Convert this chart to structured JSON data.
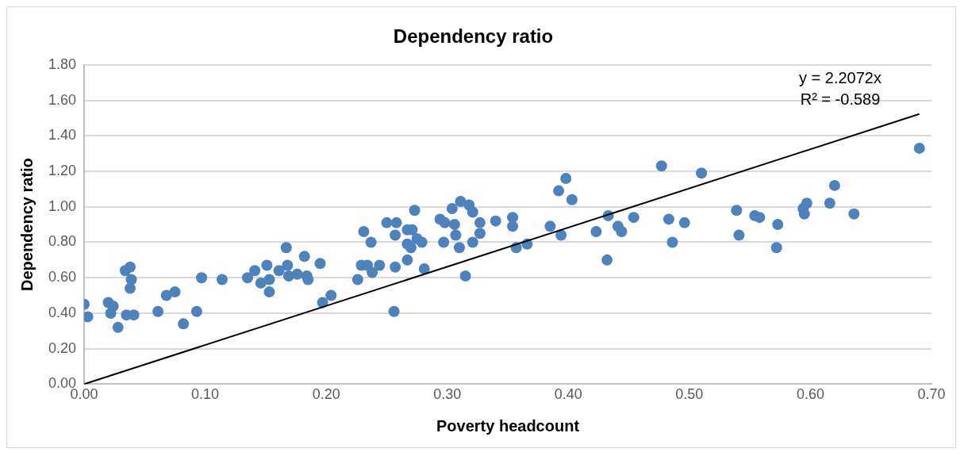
{
  "chart_data": {
    "type": "scatter",
    "title": "Dependency ratio",
    "xlabel": "Poverty headcount",
    "ylabel": "Dependency ratio",
    "x": [
      0.0,
      0.003,
      0.02,
      0.024,
      0.022,
      0.028,
      0.034,
      0.038,
      0.039,
      0.038,
      0.035,
      0.041,
      0.061,
      0.068,
      0.075,
      0.082,
      0.093,
      0.097,
      0.114,
      0.135,
      0.141,
      0.146,
      0.151,
      0.153,
      0.153,
      0.161,
      0.167,
      0.168,
      0.169,
      0.176,
      0.182,
      0.184,
      0.185,
      0.195,
      0.197,
      0.204,
      0.226,
      0.231,
      0.229,
      0.234,
      0.237,
      0.238,
      0.244,
      0.25,
      0.258,
      0.257,
      0.256,
      0.257,
      0.267,
      0.271,
      0.267,
      0.267,
      0.27,
      0.273,
      0.275,
      0.279,
      0.281,
      0.294,
      0.297,
      0.298,
      0.304,
      0.306,
      0.307,
      0.31,
      0.311,
      0.315,
      0.318,
      0.321,
      0.321,
      0.327,
      0.327,
      0.34,
      0.354,
      0.354,
      0.357,
      0.366,
      0.385,
      0.392,
      0.398,
      0.394,
      0.403,
      0.423,
      0.432,
      0.433,
      0.441,
      0.444,
      0.454,
      0.477,
      0.483,
      0.486,
      0.496,
      0.51,
      0.539,
      0.541,
      0.554,
      0.558,
      0.573,
      0.572,
      0.594,
      0.597,
      0.595,
      0.616,
      0.62,
      0.636,
      0.69
    ],
    "series": [
      {
        "marker": "circle",
        "color": "#4f81bd",
        "values": [
          0.45,
          0.38,
          0.46,
          0.44,
          0.4,
          0.32,
          0.64,
          0.66,
          0.59,
          0.54,
          0.39,
          0.39,
          0.41,
          0.5,
          0.52,
          0.34,
          0.41,
          0.6,
          0.59,
          0.6,
          0.64,
          0.57,
          0.67,
          0.59,
          0.52,
          0.64,
          0.77,
          0.67,
          0.61,
          0.62,
          0.72,
          0.61,
          0.59,
          0.68,
          0.46,
          0.5,
          0.59,
          0.86,
          0.67,
          0.67,
          0.8,
          0.63,
          0.67,
          0.91,
          0.91,
          0.66,
          0.41,
          0.84,
          0.87,
          0.87,
          0.7,
          0.79,
          0.77,
          0.98,
          0.82,
          0.8,
          0.65,
          0.93,
          0.8,
          0.91,
          0.99,
          0.9,
          0.84,
          0.77,
          1.03,
          0.61,
          1.01,
          0.97,
          0.8,
          0.91,
          0.85,
          0.92,
          0.94,
          0.89,
          0.77,
          0.79,
          0.89,
          1.09,
          1.16,
          0.84,
          1.04,
          0.86,
          0.7,
          0.95,
          0.89,
          0.86,
          0.94,
          1.23,
          0.93,
          0.8,
          0.91,
          1.19,
          0.98,
          0.84,
          0.95,
          0.94,
          0.9,
          0.77,
          0.99,
          1.02,
          0.96,
          1.02,
          1.12,
          0.96,
          1.33
        ]
      },
      {
        "type": "line",
        "color": "#000000",
        "x": [
          0,
          0.69
        ],
        "values": [
          0,
          1.523
        ]
      }
    ],
    "annotations": [
      "y = 2.2072x",
      "R² = -0.589"
    ],
    "xlim": [
      0,
      0.7
    ],
    "xticks": [
      {
        "value": 0,
        "label": "0.00"
      },
      {
        "value": 0.1,
        "label": "0.10"
      },
      {
        "value": 0.2,
        "label": "0.20"
      },
      {
        "value": 0.3,
        "label": "0.30"
      },
      {
        "value": 0.4,
        "label": "0.40"
      },
      {
        "value": 0.5,
        "label": "0.50"
      },
      {
        "value": 0.6,
        "label": "0.60"
      },
      {
        "value": 0.7,
        "label": "0.70"
      }
    ],
    "ylim": [
      0,
      1.8
    ],
    "yticks": [
      {
        "value": 0,
        "label": "0.00"
      },
      {
        "value": 0.2,
        "label": "0.20"
      },
      {
        "value": 0.4,
        "label": "0.40"
      },
      {
        "value": 0.6,
        "label": "0.60"
      },
      {
        "value": 0.8,
        "label": "0.80"
      },
      {
        "value": 1,
        "label": "1.00"
      },
      {
        "value": 1.2,
        "label": "1.20"
      },
      {
        "value": 1.4,
        "label": "1.40"
      },
      {
        "value": 1.6,
        "label": "1.60"
      },
      {
        "value": 1.8,
        "label": "1.80"
      }
    ],
    "grid": "y",
    "legend": false
  }
}
